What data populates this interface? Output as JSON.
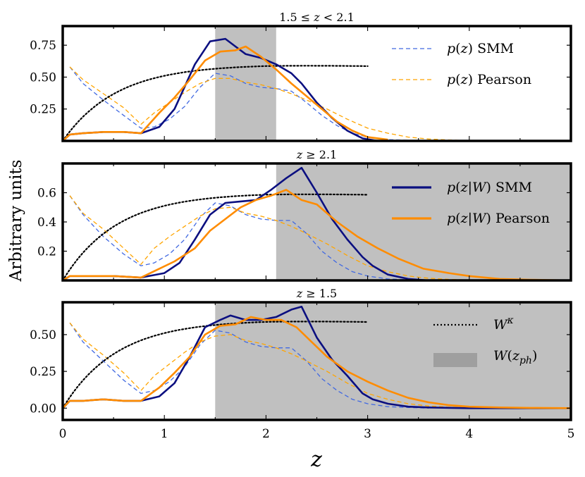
{
  "chart_data": {
    "type": "line",
    "xlabel": "z",
    "ylabel": "Arbitrary units",
    "xlim": [
      0,
      5
    ],
    "xticks": [
      "0",
      "1",
      "2",
      "3",
      "4",
      "5"
    ],
    "colors": {
      "smm": "#0b0f80",
      "pearson": "#ff8c00",
      "smm_dashed": "#4169e1",
      "pearson_dashed": "#ffa500",
      "kernel": "#000000",
      "band": "#999999"
    },
    "panels": [
      {
        "title": "1.5 ≤ z < 2.1",
        "ylim": [
          0,
          0.9
        ],
        "yticks": [
          "0.25",
          "0.50",
          "0.75"
        ],
        "ytick_values": [
          0.25,
          0.5,
          0.75
        ],
        "band": [
          1.5,
          2.1
        ],
        "legend": [
          {
            "label": "p(z) SMM",
            "style": "dashed-blue"
          },
          {
            "label": "p(z) Pearson",
            "style": "dashed-orange"
          }
        ],
        "series": [
          {
            "name": "p(z) SMM",
            "style": "dashed-blue",
            "x": [
              0.07,
              0.2,
              0.4,
              0.6,
              0.77,
              0.9,
              1.05,
              1.2,
              1.35,
              1.5,
              1.65,
              1.8,
              1.95,
              2.1,
              2.25,
              2.4,
              2.55,
              2.7,
              2.85,
              3.0,
              3.2,
              3.4,
              3.6
            ],
            "y": [
              0.58,
              0.45,
              0.32,
              0.2,
              0.1,
              0.11,
              0.17,
              0.27,
              0.42,
              0.53,
              0.51,
              0.45,
              0.42,
              0.41,
              0.39,
              0.3,
              0.2,
              0.12,
              0.06,
              0.03,
              0.01,
              0.005,
              0.0
            ]
          },
          {
            "name": "p(z) Pearson",
            "style": "dashed-orange",
            "x": [
              0.07,
              0.2,
              0.4,
              0.6,
              0.77,
              0.9,
              1.05,
              1.2,
              1.35,
              1.5,
              1.65,
              1.8,
              1.95,
              2.1,
              2.25,
              2.4,
              2.6,
              2.8,
              3.0,
              3.2,
              3.4,
              3.6,
              3.8,
              4.0
            ],
            "y": [
              0.58,
              0.48,
              0.37,
              0.26,
              0.13,
              0.22,
              0.3,
              0.38,
              0.45,
              0.49,
              0.49,
              0.46,
              0.44,
              0.41,
              0.37,
              0.32,
              0.25,
              0.17,
              0.1,
              0.06,
              0.03,
              0.015,
              0.007,
              0.003
            ]
          },
          {
            "name": "p(z|W) SMM",
            "style": "solid-navy",
            "x": [
              0.0,
              0.07,
              0.2,
              0.4,
              0.6,
              0.77,
              0.95,
              1.1,
              1.3,
              1.45,
              1.6,
              1.7,
              1.8,
              1.95,
              2.1,
              2.25,
              2.35,
              2.5,
              2.65,
              2.8,
              2.95,
              3.1,
              3.3
            ],
            "y": [
              0.0,
              0.05,
              0.06,
              0.07,
              0.07,
              0.06,
              0.11,
              0.25,
              0.6,
              0.78,
              0.8,
              0.74,
              0.68,
              0.65,
              0.6,
              0.53,
              0.45,
              0.3,
              0.18,
              0.08,
              0.02,
              0.0,
              0.0
            ]
          },
          {
            "name": "p(z|W) Pearson",
            "style": "solid-orange",
            "x": [
              0.0,
              0.07,
              0.2,
              0.4,
              0.6,
              0.77,
              0.95,
              1.1,
              1.25,
              1.4,
              1.55,
              1.7,
              1.8,
              1.95,
              2.1,
              2.25,
              2.4,
              2.55,
              2.7,
              2.85,
              3.0,
              3.2
            ],
            "y": [
              0.0,
              0.05,
              0.06,
              0.07,
              0.07,
              0.06,
              0.22,
              0.34,
              0.48,
              0.63,
              0.7,
              0.71,
              0.74,
              0.66,
              0.56,
              0.45,
              0.35,
              0.25,
              0.15,
              0.08,
              0.03,
              0.01
            ]
          }
        ]
      },
      {
        "title": "z ≥ 2.1",
        "ylim": [
          0,
          0.8
        ],
        "yticks": [
          "0.2",
          "0.4",
          "0.6"
        ],
        "ytick_values": [
          0.2,
          0.4,
          0.6
        ],
        "band": [
          2.1,
          5.0
        ],
        "legend": [
          {
            "label": "p(z|W) SMM",
            "style": "solid-navy"
          },
          {
            "label": "p(z|W) Pearson",
            "style": "solid-orange"
          }
        ],
        "series": [
          {
            "name": "p(z) SMM",
            "style": "dashed-blue",
            "x": [
              0.07,
              0.2,
              0.4,
              0.6,
              0.77,
              0.9,
              1.05,
              1.2,
              1.35,
              1.5,
              1.65,
              1.8,
              1.95,
              2.1,
              2.25,
              2.4,
              2.55,
              2.7,
              2.85,
              3.0,
              3.2,
              3.4,
              3.6
            ],
            "y": [
              0.58,
              0.45,
              0.3,
              0.18,
              0.1,
              0.12,
              0.18,
              0.28,
              0.43,
              0.53,
              0.51,
              0.45,
              0.42,
              0.41,
              0.41,
              0.32,
              0.2,
              0.12,
              0.06,
              0.03,
              0.01,
              0.005,
              0.0
            ]
          },
          {
            "name": "p(z) Pearson",
            "style": "dashed-orange",
            "x": [
              0.07,
              0.2,
              0.4,
              0.6,
              0.77,
              0.9,
              1.05,
              1.2,
              1.35,
              1.5,
              1.65,
              1.8,
              1.95,
              2.1,
              2.25,
              2.4,
              2.6,
              2.8,
              3.0,
              3.2,
              3.4,
              3.6,
              3.8,
              4.0
            ],
            "y": [
              0.58,
              0.46,
              0.35,
              0.22,
              0.11,
              0.22,
              0.3,
              0.37,
              0.44,
              0.49,
              0.5,
              0.46,
              0.44,
              0.41,
              0.37,
              0.32,
              0.25,
              0.17,
              0.1,
              0.06,
              0.03,
              0.015,
              0.007,
              0.003
            ]
          },
          {
            "name": "p(z|W) SMM",
            "style": "solid-navy",
            "x": [
              0.0,
              0.07,
              0.3,
              0.5,
              0.77,
              1.0,
              1.15,
              1.3,
              1.45,
              1.6,
              1.75,
              1.9,
              2.05,
              2.2,
              2.35,
              2.5,
              2.65,
              2.8,
              2.95,
              3.05,
              3.2,
              3.4,
              3.6,
              3.8
            ],
            "y": [
              0.0,
              0.03,
              0.03,
              0.03,
              0.02,
              0.05,
              0.12,
              0.28,
              0.45,
              0.53,
              0.54,
              0.55,
              0.62,
              0.7,
              0.77,
              0.6,
              0.42,
              0.28,
              0.16,
              0.1,
              0.04,
              0.01,
              0.0,
              0.0
            ]
          },
          {
            "name": "p(z|W) Pearson",
            "style": "solid-orange",
            "x": [
              0.0,
              0.07,
              0.3,
              0.5,
              0.77,
              0.95,
              1.1,
              1.3,
              1.45,
              1.6,
              1.75,
              1.9,
              2.05,
              2.2,
              2.35,
              2.5,
              2.7,
              2.9,
              3.1,
              3.3,
              3.55,
              3.8,
              4.0,
              4.3,
              4.6,
              5.0
            ],
            "y": [
              0.0,
              0.03,
              0.03,
              0.03,
              0.02,
              0.08,
              0.13,
              0.22,
              0.34,
              0.42,
              0.5,
              0.55,
              0.58,
              0.62,
              0.55,
              0.52,
              0.4,
              0.3,
              0.22,
              0.15,
              0.08,
              0.05,
              0.03,
              0.01,
              0.005,
              0.0
            ]
          }
        ]
      },
      {
        "title": "z ≥ 1.5",
        "ylim": [
          -0.08,
          0.72
        ],
        "yticks": [
          "0.00",
          "0.25",
          "0.50"
        ],
        "ytick_values": [
          0.0,
          0.25,
          0.5
        ],
        "band": [
          1.5,
          5.0
        ],
        "legend": [
          {
            "label": "W^κ",
            "style": "dotted-black"
          },
          {
            "label": "W(z_ph)",
            "style": "band"
          }
        ],
        "series": [
          {
            "name": "p(z) SMM",
            "style": "dashed-blue",
            "x": [
              0.07,
              0.2,
              0.4,
              0.6,
              0.77,
              0.9,
              1.05,
              1.2,
              1.35,
              1.5,
              1.65,
              1.8,
              1.95,
              2.1,
              2.25,
              2.4,
              2.55,
              2.7,
              2.85,
              3.0,
              3.2,
              3.4,
              3.6
            ],
            "y": [
              0.58,
              0.45,
              0.32,
              0.19,
              0.1,
              0.12,
              0.18,
              0.28,
              0.43,
              0.53,
              0.51,
              0.45,
              0.42,
              0.41,
              0.41,
              0.32,
              0.2,
              0.12,
              0.06,
              0.03,
              0.01,
              0.005,
              0.0
            ]
          },
          {
            "name": "p(z) Pearson",
            "style": "dashed-orange",
            "x": [
              0.07,
              0.2,
              0.4,
              0.6,
              0.77,
              0.9,
              1.05,
              1.2,
              1.35,
              1.5,
              1.65,
              1.8,
              1.95,
              2.1,
              2.25,
              2.4,
              2.6,
              2.8,
              3.0,
              3.2,
              3.4,
              3.6,
              3.8,
              4.0
            ],
            "y": [
              0.58,
              0.47,
              0.36,
              0.24,
              0.12,
              0.22,
              0.3,
              0.38,
              0.45,
              0.49,
              0.5,
              0.46,
              0.44,
              0.41,
              0.37,
              0.32,
              0.25,
              0.17,
              0.1,
              0.06,
              0.03,
              0.015,
              0.007,
              0.003
            ]
          },
          {
            "name": "p(z|W) SMM",
            "style": "solid-navy",
            "x": [
              0.0,
              0.07,
              0.2,
              0.4,
              0.6,
              0.77,
              0.95,
              1.1,
              1.25,
              1.4,
              1.55,
              1.65,
              1.8,
              1.95,
              2.1,
              2.25,
              2.35,
              2.5,
              2.65,
              2.8,
              2.95,
              3.05,
              3.2,
              3.4,
              3.6,
              4.0,
              4.5,
              5.0
            ],
            "y": [
              0.0,
              0.05,
              0.05,
              0.06,
              0.05,
              0.05,
              0.08,
              0.17,
              0.35,
              0.55,
              0.6,
              0.63,
              0.6,
              0.6,
              0.62,
              0.67,
              0.69,
              0.48,
              0.33,
              0.22,
              0.1,
              0.06,
              0.03,
              0.01,
              0.005,
              0.0,
              0.0,
              0.0
            ]
          },
          {
            "name": "p(z|W) Pearson",
            "style": "solid-orange",
            "x": [
              0.0,
              0.07,
              0.2,
              0.4,
              0.6,
              0.77,
              0.95,
              1.1,
              1.25,
              1.4,
              1.55,
              1.7,
              1.85,
              2.0,
              2.15,
              2.3,
              2.45,
              2.6,
              2.8,
              3.0,
              3.2,
              3.4,
              3.6,
              3.8,
              4.0,
              4.3,
              4.6,
              5.0
            ],
            "y": [
              0.0,
              0.05,
              0.05,
              0.06,
              0.05,
              0.05,
              0.14,
              0.24,
              0.35,
              0.5,
              0.56,
              0.57,
              0.62,
              0.6,
              0.6,
              0.55,
              0.45,
              0.35,
              0.25,
              0.18,
              0.12,
              0.07,
              0.04,
              0.02,
              0.01,
              0.005,
              0.002,
              0.0
            ]
          }
        ]
      }
    ]
  }
}
